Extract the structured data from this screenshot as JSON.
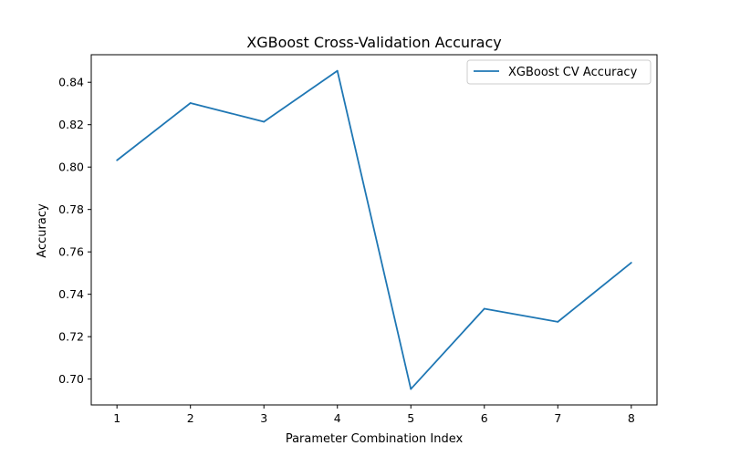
{
  "chart_data": {
    "type": "line",
    "title": "XGBoost Cross-Validation Accuracy",
    "xlabel": "Parameter Combination Index",
    "ylabel": "Accuracy",
    "x": [
      1,
      2,
      3,
      4,
      5,
      6,
      7,
      8
    ],
    "series": [
      {
        "name": "XGBoost CV Accuracy",
        "color": "#1f77b4",
        "values": [
          0.8032,
          0.8302,
          0.8214,
          0.8454,
          0.6953,
          0.7332,
          0.727,
          0.7549
        ]
      }
    ],
    "xlim": [
      0.65,
      8.35
    ],
    "ylim": [
      0.6878,
      0.853
    ],
    "xticks": [
      1,
      2,
      3,
      4,
      5,
      6,
      7,
      8
    ],
    "yticks": [
      0.7,
      0.72,
      0.74,
      0.76,
      0.78,
      0.8,
      0.82,
      0.84
    ],
    "ytick_labels": [
      "0.70",
      "0.72",
      "0.74",
      "0.76",
      "0.78",
      "0.80",
      "0.82",
      "0.84"
    ],
    "grid": false,
    "legend_position": "upper right"
  }
}
